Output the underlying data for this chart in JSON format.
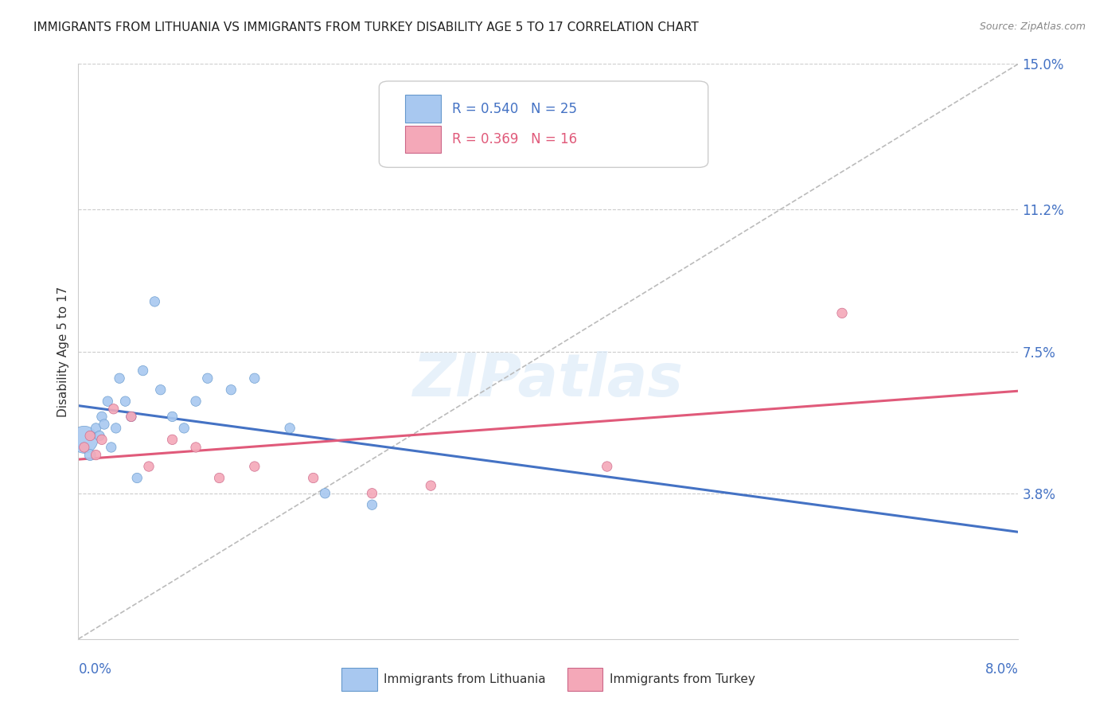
{
  "title": "IMMIGRANTS FROM LITHUANIA VS IMMIGRANTS FROM TURKEY DISABILITY AGE 5 TO 17 CORRELATION CHART",
  "source": "Source: ZipAtlas.com",
  "ylabel": "Disability Age 5 to 17",
  "xlim": [
    0.0,
    8.0
  ],
  "ylim": [
    0.0,
    15.0
  ],
  "ytick_vals": [
    3.8,
    7.5,
    11.2,
    15.0
  ],
  "ytick_labels": [
    "3.8%",
    "7.5%",
    "11.2%",
    "15.0%"
  ],
  "legend1_label": "Immigrants from Lithuania",
  "legend2_label": "Immigrants from Turkey",
  "R_lithuania": 0.54,
  "N_lithuania": 25,
  "R_turkey": 0.369,
  "N_turkey": 16,
  "color_lithuania": "#A8C8F0",
  "color_turkey": "#F4A8B8",
  "edge_lithuania": "#6699CC",
  "edge_turkey": "#CC6688",
  "trendline_lithuania_color": "#4472C4",
  "trendline_turkey_color": "#E05A7A",
  "diag_color": "#BBBBBB",
  "grid_color": "#CCCCCC",
  "background_color": "#FFFFFF",
  "title_color": "#222222",
  "axis_label_color": "#4472C4",
  "watermark": "ZIPatlas",
  "lith_x": [
    0.05,
    0.1,
    0.15,
    0.18,
    0.2,
    0.22,
    0.25,
    0.28,
    0.32,
    0.35,
    0.4,
    0.45,
    0.5,
    0.55,
    0.65,
    0.7,
    0.8,
    0.9,
    1.0,
    1.1,
    1.3,
    1.5,
    1.8,
    2.1,
    2.5
  ],
  "lith_y": [
    5.2,
    4.8,
    5.5,
    5.3,
    5.8,
    5.6,
    6.2,
    5.0,
    5.5,
    6.8,
    6.2,
    5.8,
    4.2,
    7.0,
    8.8,
    6.5,
    5.8,
    5.5,
    6.2,
    6.8,
    6.5,
    6.8,
    5.5,
    3.8,
    3.5
  ],
  "lith_sizes": [
    600,
    100,
    80,
    80,
    80,
    80,
    80,
    80,
    80,
    80,
    80,
    80,
    80,
    80,
    80,
    80,
    80,
    80,
    80,
    80,
    80,
    80,
    80,
    80,
    80
  ],
  "turk_x": [
    0.05,
    0.1,
    0.15,
    0.2,
    0.3,
    0.45,
    0.6,
    0.8,
    1.0,
    1.2,
    1.5,
    2.0,
    2.5,
    3.0,
    4.5,
    6.5
  ],
  "turk_y": [
    5.0,
    5.3,
    4.8,
    5.2,
    6.0,
    5.8,
    4.5,
    5.2,
    5.0,
    4.2,
    4.5,
    4.2,
    3.8,
    4.0,
    4.5,
    8.5
  ],
  "turk_sizes": [
    80,
    80,
    80,
    80,
    80,
    80,
    80,
    80,
    80,
    80,
    80,
    80,
    80,
    80,
    80,
    80
  ]
}
